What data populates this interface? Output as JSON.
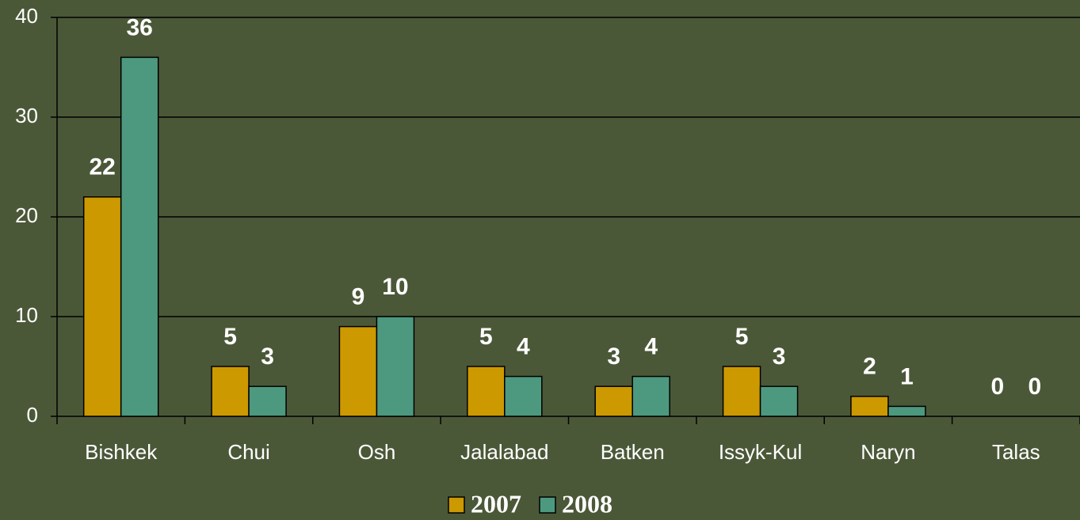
{
  "chart_data": {
    "type": "bar",
    "categories": [
      "Bishkek",
      "Chui",
      "Osh",
      "Jalalabad",
      "Batken",
      "Issyk-Kul",
      "Naryn",
      "Talas"
    ],
    "series": [
      {
        "name": "2007",
        "color": "#cc9900",
        "values": [
          22,
          5,
          9,
          5,
          3,
          5,
          2,
          0
        ]
      },
      {
        "name": "2008",
        "color": "#4d9980",
        "values": [
          36,
          3,
          10,
          4,
          4,
          3,
          1,
          0
        ]
      }
    ],
    "ylim": [
      0,
      40
    ],
    "yticks": [
      0,
      10,
      20,
      30,
      40
    ],
    "grid": true,
    "legend": "bottom"
  }
}
